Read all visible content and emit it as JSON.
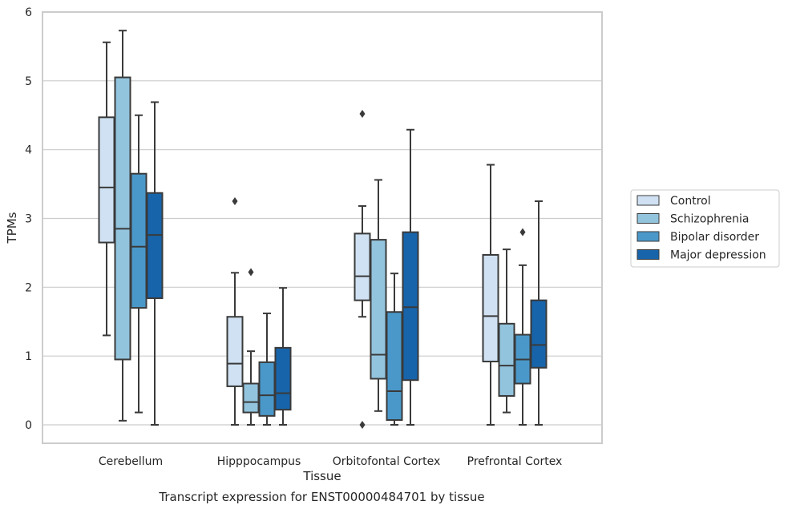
{
  "caption": "Transcript expression for ENST00000484701 by tissue",
  "colors": {
    "Control": "#cfe1f2",
    "Schizophrenia": "#93c4de",
    "Bipolar disorder": "#4a98c9",
    "Major depression": "#1764ab",
    "grid": "#cccccc",
    "frame": "#cccccc",
    "line": "#3a3a3a"
  },
  "chart_data": {
    "type": "box",
    "xlabel": "Tissue",
    "ylabel": "TPMs",
    "ylim": [
      -0.27,
      6.0
    ],
    "yticks": [
      0,
      1,
      2,
      3,
      4,
      5,
      6
    ],
    "grid": true,
    "legend_position": "right",
    "categories": [
      "Cerebellum",
      "Hipppocampus",
      "Orbitofontal Cortex",
      "Prefrontal Cortex"
    ],
    "series": [
      {
        "name": "Control",
        "boxes": [
          {
            "whislo": 1.3,
            "q1": 2.65,
            "med": 3.45,
            "q3": 4.47,
            "whishi": 5.56,
            "fliers": []
          },
          {
            "whislo": 0.0,
            "q1": 0.56,
            "med": 0.89,
            "q3": 1.57,
            "whishi": 2.21,
            "fliers": [
              3.25
            ]
          },
          {
            "whislo": 1.57,
            "q1": 1.81,
            "med": 2.16,
            "q3": 2.78,
            "whishi": 3.18,
            "fliers": [
              4.52,
              0.0
            ]
          },
          {
            "whislo": 0.0,
            "q1": 0.92,
            "med": 1.58,
            "q3": 2.47,
            "whishi": 3.78,
            "fliers": []
          }
        ]
      },
      {
        "name": "Schizophrenia",
        "boxes": [
          {
            "whislo": 0.06,
            "q1": 0.95,
            "med": 2.85,
            "q3": 5.05,
            "whishi": 5.73,
            "fliers": []
          },
          {
            "whislo": 0.0,
            "q1": 0.18,
            "med": 0.33,
            "q3": 0.6,
            "whishi": 1.07,
            "fliers": [
              2.22
            ]
          },
          {
            "whislo": 0.2,
            "q1": 0.67,
            "med": 1.02,
            "q3": 2.69,
            "whishi": 3.56,
            "fliers": []
          },
          {
            "whislo": 0.18,
            "q1": 0.42,
            "med": 0.86,
            "q3": 1.47,
            "whishi": 2.55,
            "fliers": []
          }
        ]
      },
      {
        "name": "Bipolar disorder",
        "boxes": [
          {
            "whislo": 0.18,
            "q1": 1.7,
            "med": 2.59,
            "q3": 3.65,
            "whishi": 4.5,
            "fliers": []
          },
          {
            "whislo": 0.0,
            "q1": 0.13,
            "med": 0.43,
            "q3": 0.91,
            "whishi": 1.62,
            "fliers": []
          },
          {
            "whislo": 0.0,
            "q1": 0.07,
            "med": 0.49,
            "q3": 1.64,
            "whishi": 2.2,
            "fliers": []
          },
          {
            "whislo": 0.0,
            "q1": 0.6,
            "med": 0.95,
            "q3": 1.31,
            "whishi": 2.32,
            "fliers": [
              2.8
            ]
          }
        ]
      },
      {
        "name": "Major depression",
        "boxes": [
          {
            "whislo": 0.0,
            "q1": 1.84,
            "med": 2.76,
            "q3": 3.37,
            "whishi": 4.69,
            "fliers": []
          },
          {
            "whislo": 0.0,
            "q1": 0.22,
            "med": 0.46,
            "q3": 1.12,
            "whishi": 1.99,
            "fliers": []
          },
          {
            "whislo": 0.0,
            "q1": 0.65,
            "med": 1.71,
            "q3": 2.8,
            "whishi": 4.29,
            "fliers": []
          },
          {
            "whislo": 0.0,
            "q1": 0.83,
            "med": 1.16,
            "q3": 1.81,
            "whishi": 3.25,
            "fliers": []
          }
        ]
      }
    ]
  }
}
